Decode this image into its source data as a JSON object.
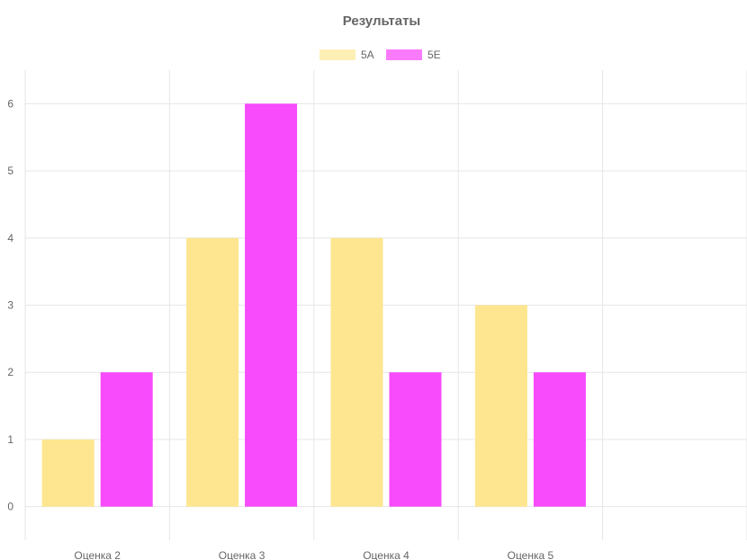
{
  "chart_data": {
    "type": "bar",
    "title": "Результаты",
    "categories": [
      "Оценка 2",
      "Оценка 3",
      "Оценка 4",
      "Оценка 5",
      ""
    ],
    "series": [
      {
        "name": "5А",
        "values": [
          1,
          4,
          4,
          3,
          null
        ],
        "color": "#fde68f",
        "legend_color": "#fdf0b5"
      },
      {
        "name": "5Е",
        "values": [
          2,
          6,
          2,
          2,
          null
        ],
        "color": "#f74bfc",
        "legend_color": "#f97bfc"
      }
    ],
    "ylim": [
      -0.5,
      6.5
    ],
    "yticks": [
      0,
      1,
      2,
      3,
      4,
      5,
      6
    ],
    "grid": true,
    "legend_position": "top"
  }
}
